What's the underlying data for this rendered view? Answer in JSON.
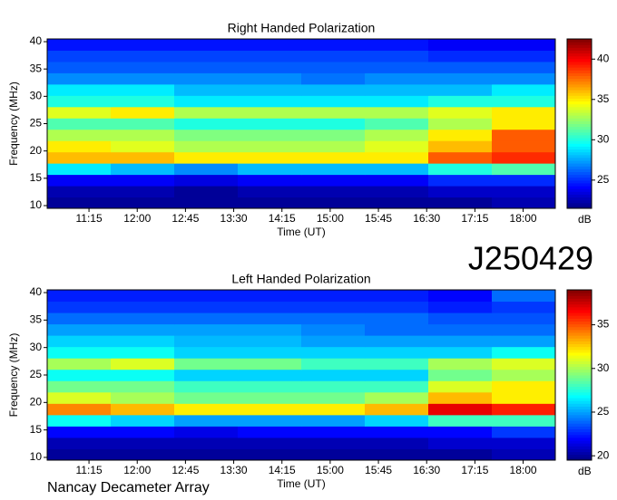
{
  "title": "J250429",
  "footer": "Nancay Decameter Array",
  "chart_data": [
    {
      "type": "heatmap",
      "title": "Right Handed Polarization",
      "x_label": "Time (UT)",
      "y_label": "Frequency (MHz)",
      "colorbar_label": "dB",
      "colormap": "jet",
      "xlim": [
        10.6,
        18.5
      ],
      "xticks": [
        {
          "value": 11.25,
          "label": "11:15"
        },
        {
          "value": 12,
          "label": "12:00"
        },
        {
          "value": 12.75,
          "label": "12:45"
        },
        {
          "value": 13.5,
          "label": "13:30"
        },
        {
          "value": 14.25,
          "label": "14:15"
        },
        {
          "value": 15,
          "label": "15:00"
        },
        {
          "value": 15.75,
          "label": "15:45"
        },
        {
          "value": 16.5,
          "label": "16:30"
        },
        {
          "value": 17.25,
          "label": "17:15"
        },
        {
          "value": 18,
          "label": "18:00"
        }
      ],
      "ylim": [
        9.5,
        40.5
      ],
      "yticks": [
        10,
        15,
        20,
        25,
        30,
        35,
        40
      ],
      "clim": [
        21.5,
        42.5
      ],
      "cticks": [
        25,
        30,
        35,
        40
      ],
      "values": [
        [
          22,
          22,
          22,
          22,
          22,
          22,
          22,
          22.5
        ],
        [
          22.5,
          22.5,
          22,
          22.5,
          22.5,
          22.5,
          23,
          23
        ],
        [
          24,
          24,
          23.5,
          24,
          24,
          24,
          25,
          25
        ],
        [
          29,
          28,
          27,
          28,
          28,
          28,
          30,
          31
        ],
        [
          36,
          36,
          35,
          35,
          35,
          35,
          38,
          39
        ],
        [
          35,
          34,
          33,
          33,
          33,
          34,
          36,
          38
        ],
        [
          33,
          33,
          32,
          32,
          32,
          33,
          35,
          38
        ],
        [
          31,
          31,
          30,
          30,
          30,
          31,
          33,
          35
        ],
        [
          34,
          35,
          33,
          33,
          33,
          33,
          34,
          35
        ],
        [
          30,
          30,
          29,
          29,
          29,
          29,
          30,
          30
        ],
        [
          29,
          29,
          28,
          28,
          28,
          28,
          28,
          29
        ],
        [
          27,
          27,
          27,
          27,
          26.5,
          27,
          27,
          27
        ],
        [
          26,
          26,
          26,
          26,
          26,
          26,
          26,
          26
        ],
        [
          25.5,
          25.5,
          25.5,
          25.5,
          25.5,
          25.5,
          25,
          25
        ],
        [
          24.5,
          24.5,
          24.5,
          24.5,
          24.5,
          24.5,
          24,
          24
        ]
      ]
    },
    {
      "type": "heatmap",
      "title": "Left Handed Polarization",
      "x_label": "Time (UT)",
      "y_label": "Frequency (MHz)",
      "colorbar_label": "dB",
      "colormap": "jet",
      "xlim": [
        10.6,
        18.5
      ],
      "xticks": [
        {
          "value": 11.25,
          "label": "11:15"
        },
        {
          "value": 12,
          "label": "12:00"
        },
        {
          "value": 12.75,
          "label": "12:45"
        },
        {
          "value": 13.5,
          "label": "13:30"
        },
        {
          "value": 14.25,
          "label": "14:15"
        },
        {
          "value": 15,
          "label": "15:00"
        },
        {
          "value": 15.75,
          "label": "15:45"
        },
        {
          "value": 16.5,
          "label": "16:30"
        },
        {
          "value": 17.25,
          "label": "17:15"
        },
        {
          "value": 18,
          "label": "18:00"
        }
      ],
      "ylim": [
        9.5,
        40.5
      ],
      "yticks": [
        10,
        15,
        20,
        25,
        30,
        35,
        40
      ],
      "clim": [
        19.5,
        39
      ],
      "cticks": [
        20,
        25,
        30,
        35
      ],
      "values": [
        [
          20,
          20,
          20,
          20,
          20,
          20,
          20,
          20.5
        ],
        [
          20.5,
          20.5,
          20.5,
          20.5,
          20.5,
          20.5,
          21,
          21
        ],
        [
          22,
          22,
          21.5,
          22,
          22,
          22,
          22,
          23
        ],
        [
          27,
          26,
          25,
          25,
          25,
          26,
          28,
          28
        ],
        [
          34,
          33,
          32,
          32,
          32,
          33,
          37,
          36
        ],
        [
          31,
          30,
          29,
          29,
          29,
          30,
          33,
          32
        ],
        [
          29,
          29,
          28,
          28,
          28,
          28,
          31,
          32
        ],
        [
          27,
          27,
          26,
          26,
          26,
          26,
          29,
          30
        ],
        [
          30,
          31,
          29,
          29,
          28,
          28,
          30,
          31
        ],
        [
          27,
          27,
          26,
          26,
          26,
          26,
          26,
          27
        ],
        [
          26,
          26,
          25.5,
          25.5,
          25,
          25,
          25,
          25
        ],
        [
          25,
          25,
          25,
          25,
          24.5,
          24,
          24,
          24
        ],
        [
          24,
          24,
          24,
          24,
          24,
          24,
          23.5,
          23.5
        ],
        [
          23,
          23,
          23,
          23,
          23,
          23,
          22.5,
          23
        ],
        [
          22.5,
          22.5,
          22.5,
          22.5,
          22.5,
          22.5,
          22,
          24
        ]
      ]
    }
  ]
}
